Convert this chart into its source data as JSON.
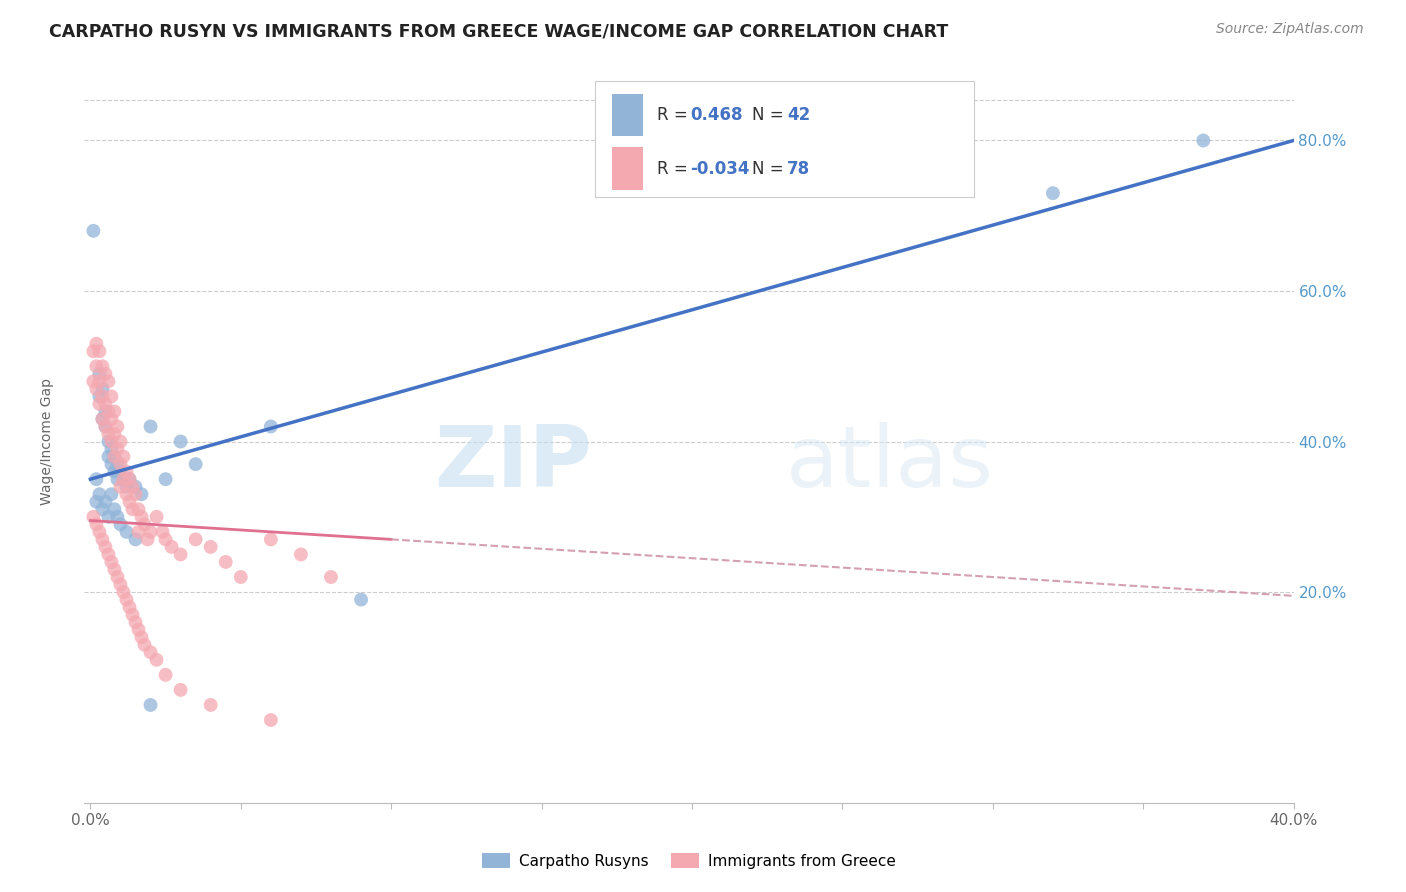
{
  "title": "CARPATHO RUSYN VS IMMIGRANTS FROM GREECE WAGE/INCOME GAP CORRELATION CHART",
  "source": "Source: ZipAtlas.com",
  "ylabel": "Wage/Income Gap",
  "xlim": [
    -0.002,
    0.4
  ],
  "ylim": [
    -0.08,
    0.88
  ],
  "x_ticks": [
    0.0,
    0.05,
    0.1,
    0.15,
    0.2,
    0.25,
    0.3,
    0.35,
    0.4
  ],
  "y_ticks_right": [
    0.2,
    0.4,
    0.6,
    0.8
  ],
  "y_tick_labels_right": [
    "20.0%",
    "40.0%",
    "60.0%",
    "80.0%"
  ],
  "watermark_zip": "ZIP",
  "watermark_atlas": "atlas",
  "blue_color": "#92B4D7",
  "pink_color": "#F4A8B0",
  "blue_line_color": "#4472C4",
  "pink_line_solid_color": "#E07090",
  "pink_line_dash_color": "#D4A0B0",
  "blue_r_color": "#4472C4",
  "legend_label1": "Carpatho Rusyns",
  "legend_label2": "Immigrants from Greece",
  "blue_x": [
    0.001,
    0.002,
    0.003,
    0.003,
    0.004,
    0.004,
    0.005,
    0.005,
    0.006,
    0.006,
    0.007,
    0.007,
    0.008,
    0.008,
    0.009,
    0.009,
    0.01,
    0.011,
    0.012,
    0.013,
    0.015,
    0.017,
    0.02,
    0.025,
    0.03,
    0.035,
    0.06,
    0.09,
    0.32,
    0.37,
    0.002,
    0.003,
    0.004,
    0.005,
    0.006,
    0.007,
    0.008,
    0.009,
    0.01,
    0.012,
    0.015,
    0.02
  ],
  "blue_y": [
    0.68,
    0.35,
    0.49,
    0.46,
    0.43,
    0.47,
    0.42,
    0.44,
    0.38,
    0.4,
    0.37,
    0.39,
    0.36,
    0.38,
    0.35,
    0.37,
    0.36,
    0.35,
    0.34,
    0.35,
    0.34,
    0.33,
    0.42,
    0.35,
    0.4,
    0.37,
    0.42,
    0.19,
    0.73,
    0.8,
    0.32,
    0.33,
    0.31,
    0.32,
    0.3,
    0.33,
    0.31,
    0.3,
    0.29,
    0.28,
    0.27,
    0.05
  ],
  "pink_x": [
    0.001,
    0.001,
    0.002,
    0.002,
    0.002,
    0.003,
    0.003,
    0.003,
    0.004,
    0.004,
    0.004,
    0.005,
    0.005,
    0.005,
    0.006,
    0.006,
    0.006,
    0.007,
    0.007,
    0.007,
    0.008,
    0.008,
    0.008,
    0.009,
    0.009,
    0.01,
    0.01,
    0.01,
    0.011,
    0.011,
    0.012,
    0.012,
    0.013,
    0.013,
    0.014,
    0.014,
    0.015,
    0.016,
    0.016,
    0.017,
    0.018,
    0.019,
    0.02,
    0.022,
    0.024,
    0.025,
    0.027,
    0.03,
    0.035,
    0.04,
    0.045,
    0.05,
    0.06,
    0.07,
    0.08,
    0.001,
    0.002,
    0.003,
    0.004,
    0.005,
    0.006,
    0.007,
    0.008,
    0.009,
    0.01,
    0.011,
    0.012,
    0.013,
    0.014,
    0.015,
    0.016,
    0.017,
    0.018,
    0.02,
    0.022,
    0.025,
    0.03,
    0.04,
    0.06
  ],
  "pink_y": [
    0.52,
    0.48,
    0.53,
    0.5,
    0.47,
    0.52,
    0.48,
    0.45,
    0.5,
    0.46,
    0.43,
    0.49,
    0.45,
    0.42,
    0.48,
    0.44,
    0.41,
    0.46,
    0.43,
    0.4,
    0.44,
    0.41,
    0.38,
    0.42,
    0.39,
    0.4,
    0.37,
    0.34,
    0.38,
    0.35,
    0.36,
    0.33,
    0.35,
    0.32,
    0.34,
    0.31,
    0.33,
    0.31,
    0.28,
    0.3,
    0.29,
    0.27,
    0.28,
    0.3,
    0.28,
    0.27,
    0.26,
    0.25,
    0.27,
    0.26,
    0.24,
    0.22,
    0.27,
    0.25,
    0.22,
    0.3,
    0.29,
    0.28,
    0.27,
    0.26,
    0.25,
    0.24,
    0.23,
    0.22,
    0.21,
    0.2,
    0.19,
    0.18,
    0.17,
    0.16,
    0.15,
    0.14,
    0.13,
    0.12,
    0.11,
    0.09,
    0.07,
    0.05,
    0.03
  ]
}
